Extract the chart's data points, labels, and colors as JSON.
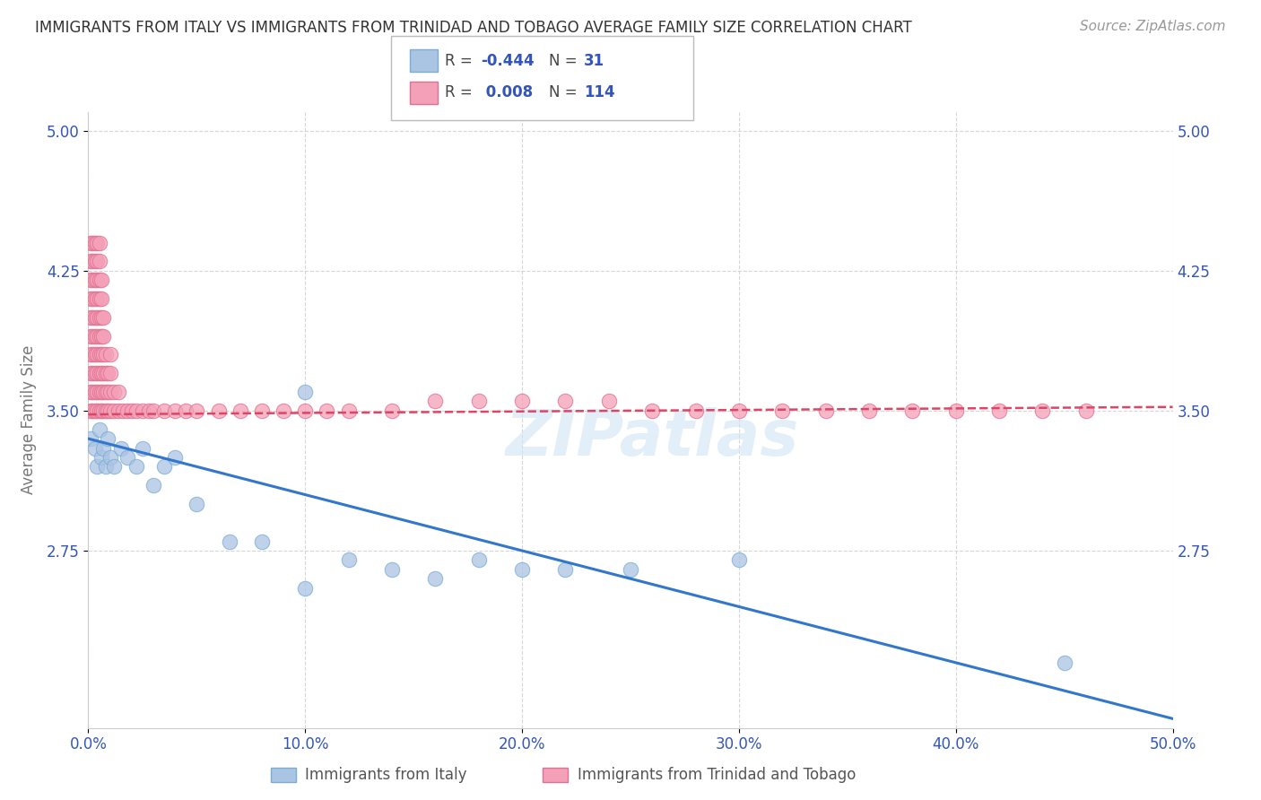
{
  "title": "IMMIGRANTS FROM ITALY VS IMMIGRANTS FROM TRINIDAD AND TOBAGO AVERAGE FAMILY SIZE CORRELATION CHART",
  "source": "Source: ZipAtlas.com",
  "ylabel": "Average Family Size",
  "xlim": [
    0.0,
    0.5
  ],
  "ylim": [
    1.8,
    5.1
  ],
  "yticks": [
    2.75,
    3.5,
    4.25,
    5.0
  ],
  "ytick_labels": [
    "2.75",
    "3.50",
    "4.25",
    "5.00"
  ],
  "xticks": [
    0.0,
    0.1,
    0.2,
    0.3,
    0.4,
    0.5
  ],
  "xtick_labels": [
    "0.0%",
    "10.0%",
    "20.0%",
    "30.0%",
    "40.0%",
    "50.0%"
  ],
  "italy_color": "#aac4e4",
  "italy_edge_color": "#7aacd4",
  "tt_color": "#f4a0b8",
  "tt_edge_color": "#e07090",
  "italy_line_color": "#3377cc",
  "tt_line_color": "#dd4466",
  "legend_text_color": "#3355bb",
  "R_italy": -0.444,
  "N_italy": 31,
  "R_tt": 0.008,
  "N_tt": 114,
  "background_color": "#ffffff",
  "grid_color": "#cccccc",
  "italy_x": [
    0.001,
    0.003,
    0.004,
    0.005,
    0.006,
    0.007,
    0.008,
    0.009,
    0.01,
    0.012,
    0.015,
    0.018,
    0.022,
    0.025,
    0.03,
    0.035,
    0.04,
    0.05,
    0.065,
    0.08,
    0.1,
    0.12,
    0.14,
    0.16,
    0.18,
    0.2,
    0.22,
    0.25,
    0.3,
    0.45,
    0.1
  ],
  "italy_y": [
    3.35,
    3.3,
    3.2,
    3.4,
    3.25,
    3.3,
    3.2,
    3.35,
    3.25,
    3.2,
    3.3,
    3.25,
    3.2,
    3.3,
    3.1,
    3.2,
    3.25,
    3.0,
    2.8,
    2.8,
    3.6,
    2.7,
    2.65,
    2.6,
    2.7,
    2.65,
    2.65,
    2.65,
    2.7,
    2.15,
    2.55
  ],
  "tt_x": [
    0.001,
    0.001,
    0.001,
    0.001,
    0.001,
    0.001,
    0.001,
    0.001,
    0.001,
    0.001,
    0.002,
    0.002,
    0.002,
    0.002,
    0.002,
    0.002,
    0.002,
    0.002,
    0.002,
    0.002,
    0.003,
    0.003,
    0.003,
    0.003,
    0.003,
    0.003,
    0.003,
    0.003,
    0.003,
    0.003,
    0.004,
    0.004,
    0.004,
    0.004,
    0.004,
    0.004,
    0.004,
    0.004,
    0.004,
    0.004,
    0.005,
    0.005,
    0.005,
    0.005,
    0.005,
    0.005,
    0.005,
    0.005,
    0.005,
    0.005,
    0.006,
    0.006,
    0.006,
    0.006,
    0.006,
    0.006,
    0.006,
    0.006,
    0.007,
    0.007,
    0.007,
    0.007,
    0.007,
    0.007,
    0.008,
    0.008,
    0.008,
    0.008,
    0.009,
    0.009,
    0.009,
    0.01,
    0.01,
    0.01,
    0.01,
    0.012,
    0.012,
    0.014,
    0.014,
    0.016,
    0.018,
    0.02,
    0.022,
    0.025,
    0.028,
    0.03,
    0.035,
    0.04,
    0.045,
    0.05,
    0.06,
    0.07,
    0.08,
    0.09,
    0.1,
    0.11,
    0.12,
    0.14,
    0.16,
    0.18,
    0.2,
    0.22,
    0.24,
    0.26,
    0.28,
    0.3,
    0.32,
    0.34,
    0.36,
    0.38,
    0.4,
    0.42,
    0.44,
    0.46
  ],
  "tt_y": [
    3.5,
    3.6,
    3.7,
    3.8,
    3.9,
    4.0,
    4.1,
    4.2,
    4.3,
    4.4,
    3.5,
    3.6,
    3.7,
    3.8,
    3.9,
    4.0,
    4.1,
    4.2,
    4.3,
    4.4,
    3.5,
    3.6,
    3.7,
    3.8,
    3.9,
    4.0,
    4.1,
    4.2,
    4.3,
    4.4,
    3.5,
    3.6,
    3.7,
    3.8,
    3.9,
    4.0,
    4.1,
    4.2,
    4.3,
    4.4,
    3.5,
    3.6,
    3.7,
    3.8,
    3.9,
    4.0,
    4.1,
    4.2,
    4.3,
    4.4,
    3.5,
    3.6,
    3.7,
    3.8,
    3.9,
    4.0,
    4.1,
    4.2,
    3.5,
    3.6,
    3.7,
    3.8,
    3.9,
    4.0,
    3.5,
    3.6,
    3.7,
    3.8,
    3.5,
    3.6,
    3.7,
    3.5,
    3.6,
    3.7,
    3.8,
    3.5,
    3.6,
    3.5,
    3.6,
    3.5,
    3.5,
    3.5,
    3.5,
    3.5,
    3.5,
    3.5,
    3.5,
    3.5,
    3.5,
    3.5,
    3.5,
    3.5,
    3.5,
    3.5,
    3.5,
    3.5,
    3.5,
    3.5,
    3.55,
    3.55,
    3.55,
    3.55,
    3.55,
    3.5,
    3.5,
    3.5,
    3.5,
    3.5,
    3.5,
    3.5,
    3.5,
    3.5,
    3.5,
    3.5
  ],
  "italy_line_x": [
    0.0,
    0.5
  ],
  "italy_line_y": [
    3.35,
    1.85
  ],
  "tt_line_x": [
    0.0,
    0.5
  ],
  "tt_line_y": [
    3.48,
    3.52
  ]
}
